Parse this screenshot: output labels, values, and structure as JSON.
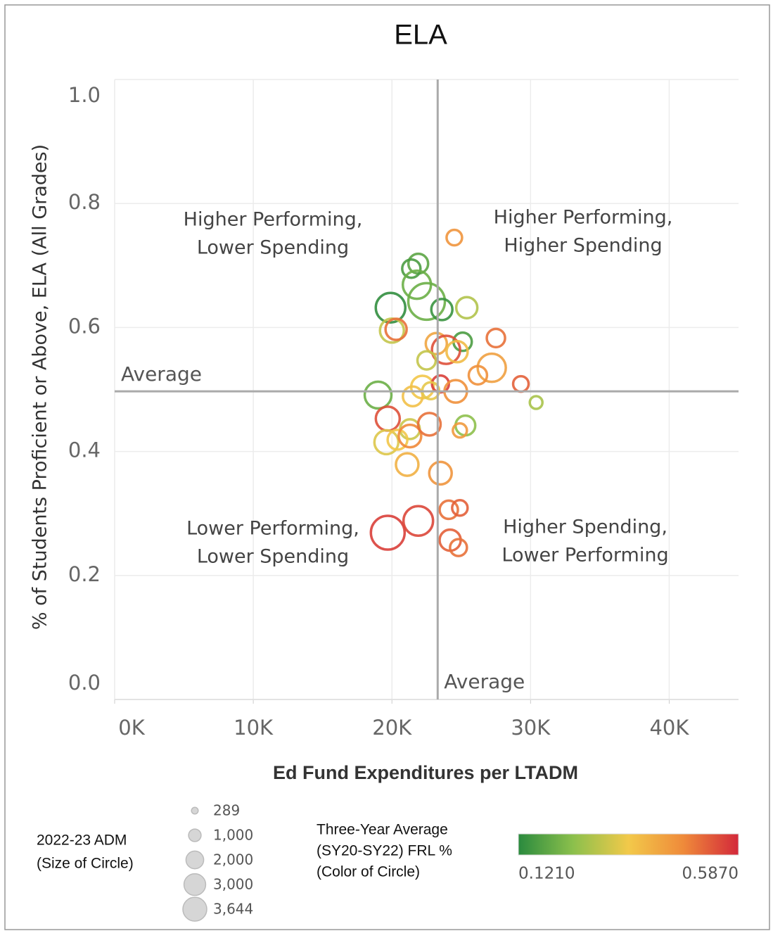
{
  "chart_data": {
    "type": "bubble",
    "title": "ELA",
    "x_label": "Ed Fund Expenditures per LTADM",
    "y_label": "% of Students Proficient or Above, ELA (All Grades)",
    "xlim": [
      0,
      45000
    ],
    "ylim": [
      0,
      1
    ],
    "xticks": [
      {
        "value": 0,
        "label": "0K"
      },
      {
        "value": 10000,
        "label": "10K"
      },
      {
        "value": 20000,
        "label": "20K"
      },
      {
        "value": 30000,
        "label": "30K"
      },
      {
        "value": 40000,
        "label": "40K"
      }
    ],
    "yticks": [
      {
        "value": 0,
        "label": "0.0"
      },
      {
        "value": 0.2,
        "label": "0.2"
      },
      {
        "value": 0.4,
        "label": "0.4"
      },
      {
        "value": 0.6,
        "label": "0.6"
      },
      {
        "value": 0.8,
        "label": "0.8"
      },
      {
        "value": 1,
        "label": "1.0"
      }
    ],
    "grid": true,
    "x_average": 23300,
    "y_average": 0.497,
    "x_average_label": "Average",
    "y_average_label": "Average",
    "annotations": [
      [
        "Higher Performing,",
        "Lower Spending"
      ],
      [
        "Higher Performing,",
        "Higher Spending"
      ],
      [
        "Lower Performing,",
        "Lower Spending"
      ],
      [
        "Higher Spending,",
        "Lower Performing"
      ]
    ],
    "x": [
      24500,
      21900,
      21400,
      21800,
      22500,
      19900,
      23600,
      25400,
      20000,
      20300,
      27500,
      25100,
      23200,
      23900,
      24700,
      22500,
      27200,
      26200,
      29300,
      30400,
      19000,
      22200,
      21500,
      23500,
      24600,
      22800,
      19700,
      21300,
      19600,
      20400,
      21300,
      22700,
      25300,
      24900,
      21100,
      23500,
      24100,
      24900,
      19700,
      21900,
      24200,
      24800
    ],
    "values": [
      0.745,
      0.703,
      0.695,
      0.669,
      0.642,
      0.632,
      0.629,
      0.632,
      0.595,
      0.597,
      0.583,
      0.577,
      0.574,
      0.564,
      0.561,
      0.547,
      0.535,
      0.523,
      0.509,
      0.479,
      0.491,
      0.504,
      0.489,
      0.509,
      0.497,
      0.498,
      0.453,
      0.436,
      0.415,
      0.419,
      0.425,
      0.444,
      0.442,
      0.434,
      0.379,
      0.365,
      0.306,
      0.309,
      0.269,
      0.288,
      0.257,
      0.245
    ],
    "sizes": [
      652,
      1057,
      911,
      2156,
      3644,
      2377,
      1213,
      1213,
      1558,
      1213,
      911,
      911,
      1213,
      2156,
      1213,
      911,
      2156,
      911,
      652,
      436,
      1946,
      1380,
      1057,
      776,
      1380,
      776,
      1558,
      1057,
      1558,
      1057,
      1380,
      1380,
      1057,
      539,
      1380,
      1380,
      911,
      652,
      3105,
      2377,
      1213,
      776
    ],
    "color_values": [
      0.45,
      0.18,
      0.16,
      0.2,
      0.2,
      0.13,
      0.14,
      0.28,
      0.3,
      0.5,
      0.5,
      0.16,
      0.42,
      0.54,
      0.38,
      0.3,
      0.43,
      0.46,
      0.52,
      0.27,
      0.2,
      0.36,
      0.37,
      0.56,
      0.46,
      0.34,
      0.54,
      0.31,
      0.33,
      0.36,
      0.47,
      0.5,
      0.24,
      0.44,
      0.4,
      0.45,
      0.5,
      0.52,
      0.56,
      0.55,
      0.52,
      0.5
    ],
    "size_legend_title": [
      "2022-23 ADM",
      "(Size of Circle)"
    ],
    "size_legend": [
      289,
      {
        "value": 1000,
        "label": "1,000"
      },
      {
        "value": 2000,
        "label": "2,000"
      },
      {
        "value": 3000,
        "label": "3,000"
      },
      {
        "value": 3644,
        "label": "3,644"
      }
    ],
    "color_legend_title": [
      "Three-Year Average",
      "(SY20-SY22) FRL %",
      "(Color of Circle)"
    ],
    "color_legend": [
      {
        "value": 0.121,
        "label": "0.1210"
      },
      {
        "value": 0.587,
        "label": "0.5870"
      }
    ],
    "color_scale": [
      "#2a8a3e",
      "#8cc04c",
      "#f2c94a",
      "#ef8a3a",
      "#d3283a"
    ]
  }
}
